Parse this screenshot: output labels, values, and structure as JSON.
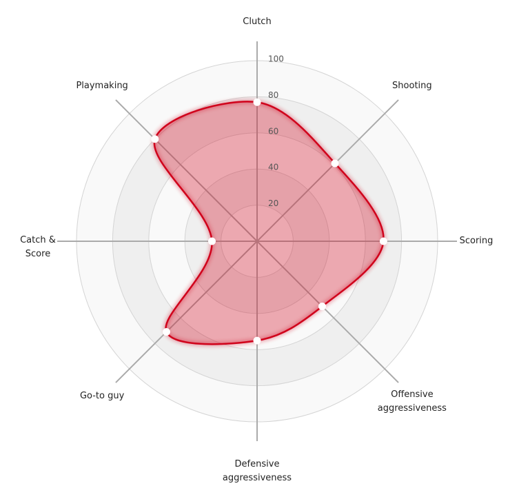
{
  "chart_data": {
    "type": "radar",
    "categories": [
      "Clutch",
      "Shooting",
      "Scoring",
      "Offensive aggressiveness",
      "Defensive aggressiveness",
      "Go-to guy",
      "Catch & Score",
      "Playmaking"
    ],
    "values": [
      77,
      61,
      70,
      51,
      55,
      71,
      25,
      80
    ],
    "color": "#d0021b",
    "rlim": [
      0,
      100
    ],
    "rticks": [
      20,
      40,
      60,
      80,
      100
    ]
  }
}
